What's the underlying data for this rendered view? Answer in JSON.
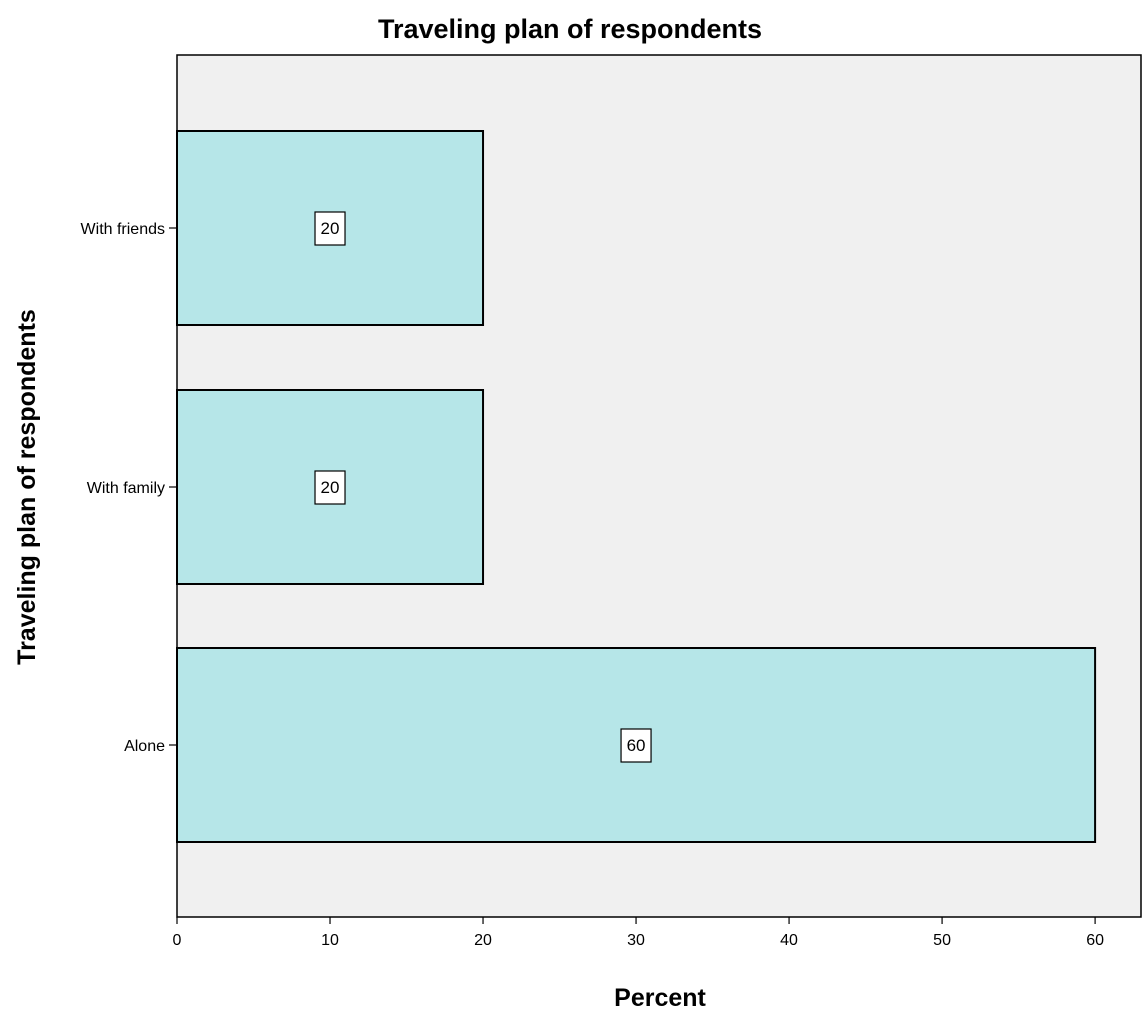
{
  "chart_data": {
    "type": "bar",
    "orientation": "horizontal",
    "title": "Traveling plan of respondents",
    "xlabel": "Percent",
    "ylabel": "Traveling plan of respondents",
    "categories": [
      "With friends",
      "With family",
      "Alone"
    ],
    "values": [
      20,
      20,
      60
    ],
    "data_labels": [
      "20",
      "20",
      "60"
    ],
    "xlim": [
      0,
      63
    ],
    "x_ticks": [
      0,
      10,
      20,
      30,
      40,
      50,
      60
    ],
    "grid": false,
    "legend": "none",
    "colors": {
      "bar_fill": "#b6e6e8",
      "bar_stroke": "#000000",
      "plot_background": "#f0f0f0",
      "label_box_fill": "#ffffff"
    }
  }
}
